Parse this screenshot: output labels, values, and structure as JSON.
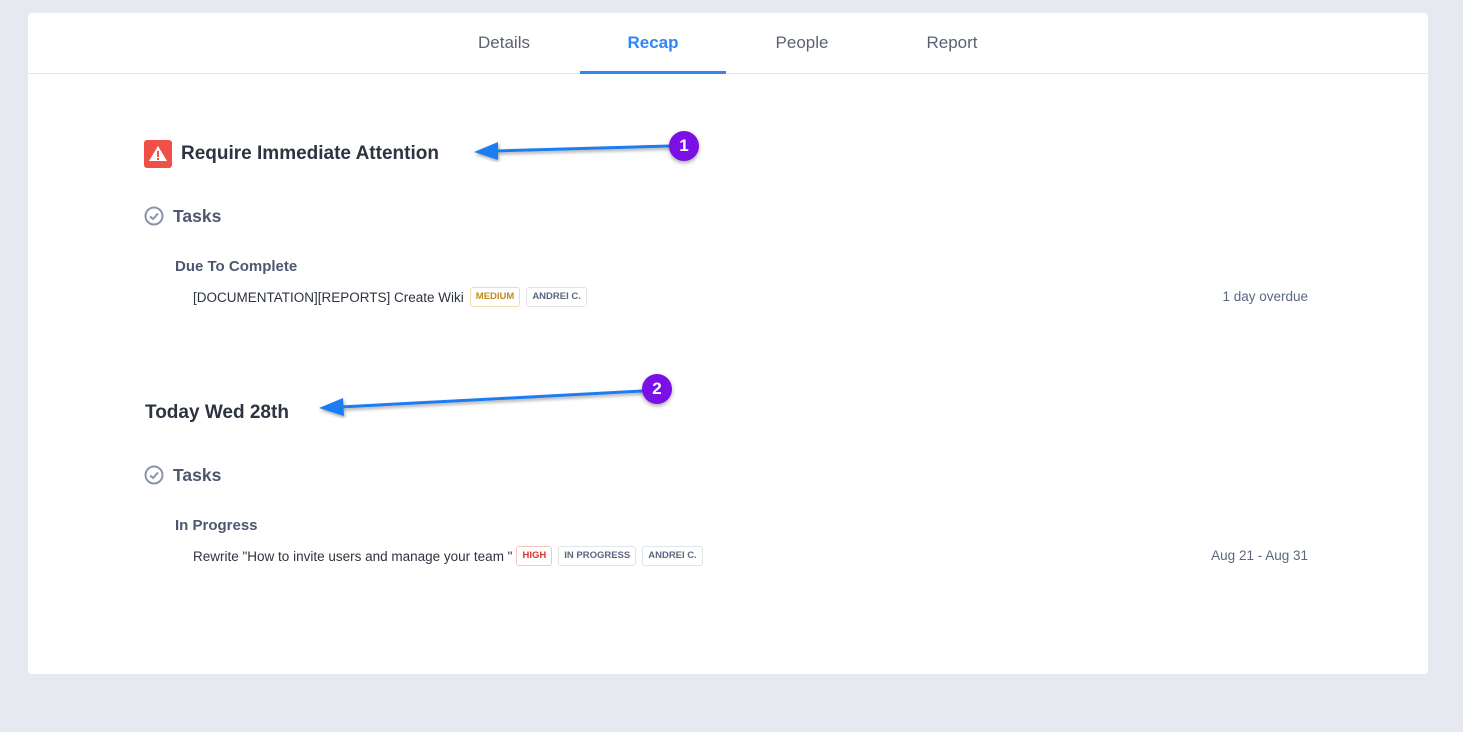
{
  "tabs": [
    {
      "label": "Details"
    },
    {
      "label": "Recap",
      "active": true
    },
    {
      "label": "People"
    },
    {
      "label": "Report"
    }
  ],
  "accent": "#2f86f6",
  "sections": [
    {
      "title": "Require Immediate Attention",
      "icon": "warning-icon",
      "subsection": "Tasks",
      "group": "Due To Complete",
      "task": {
        "title": "[DOCUMENTATION][REPORTS] Create Wiki",
        "badges": [
          "MEDIUM",
          "ANDREI C."
        ],
        "meta": "1 day overdue"
      }
    },
    {
      "title": "Today Wed 28th",
      "subsection": "Tasks",
      "group": "In Progress",
      "task": {
        "title": "Rewrite \"How to invite users and manage your team \"",
        "badges": [
          "HIGH",
          "IN PROGRESS",
          "ANDREI C."
        ],
        "meta": "Aug 21 - Aug 31"
      }
    }
  ],
  "annotations": [
    {
      "number": "1"
    },
    {
      "number": "2"
    }
  ],
  "colors": {
    "warning": "#ef5148",
    "medium": "#c48a1a",
    "high": "#d9342b",
    "annotation": "#7a0fe6",
    "arrow": "#1d7cf2"
  }
}
